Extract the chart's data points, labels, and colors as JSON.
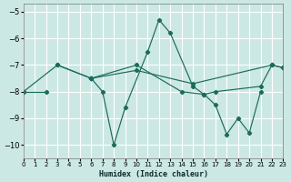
{
  "xlabel": "Humidex (Indice chaleur)",
  "xlim": [
    0,
    23
  ],
  "ylim": [
    -10.5,
    -4.7
  ],
  "yticks": [
    -10,
    -9,
    -8,
    -7,
    -6,
    -5
  ],
  "xticks": [
    0,
    1,
    2,
    3,
    4,
    5,
    6,
    7,
    8,
    9,
    10,
    11,
    12,
    13,
    14,
    15,
    16,
    17,
    18,
    19,
    20,
    21,
    22,
    23
  ],
  "bg_color": "#cce8e4",
  "line_color": "#1a6b5a",
  "grid_color": "#ffffff",
  "lines": [
    {
      "x": [
        0,
        2
      ],
      "y": [
        -8.0,
        -8.0
      ]
    },
    {
      "x": [
        3,
        6
      ],
      "y": [
        -7.0,
        -7.5
      ]
    },
    {
      "x": [
        0,
        3,
        6,
        7,
        8,
        9,
        11,
        12,
        13,
        15,
        16,
        17,
        21,
        22,
        23
      ],
      "y": [
        -8.0,
        -7.0,
        -7.5,
        -8.0,
        -10.0,
        -8.6,
        -6.5,
        -5.3,
        -5.8,
        -7.8,
        -8.1,
        -8.0,
        -7.8,
        -7.0,
        -7.1
      ]
    },
    {
      "x": [
        6,
        10,
        15,
        22,
        23
      ],
      "y": [
        -7.5,
        -7.2,
        -7.7,
        -7.0,
        -7.1
      ]
    },
    {
      "x": [
        6,
        10,
        14,
        16,
        17,
        18,
        19,
        20,
        21
      ],
      "y": [
        -7.5,
        -7.0,
        -8.0,
        -8.1,
        -8.5,
        -9.6,
        -9.0,
        -9.55,
        -8.0
      ]
    }
  ]
}
